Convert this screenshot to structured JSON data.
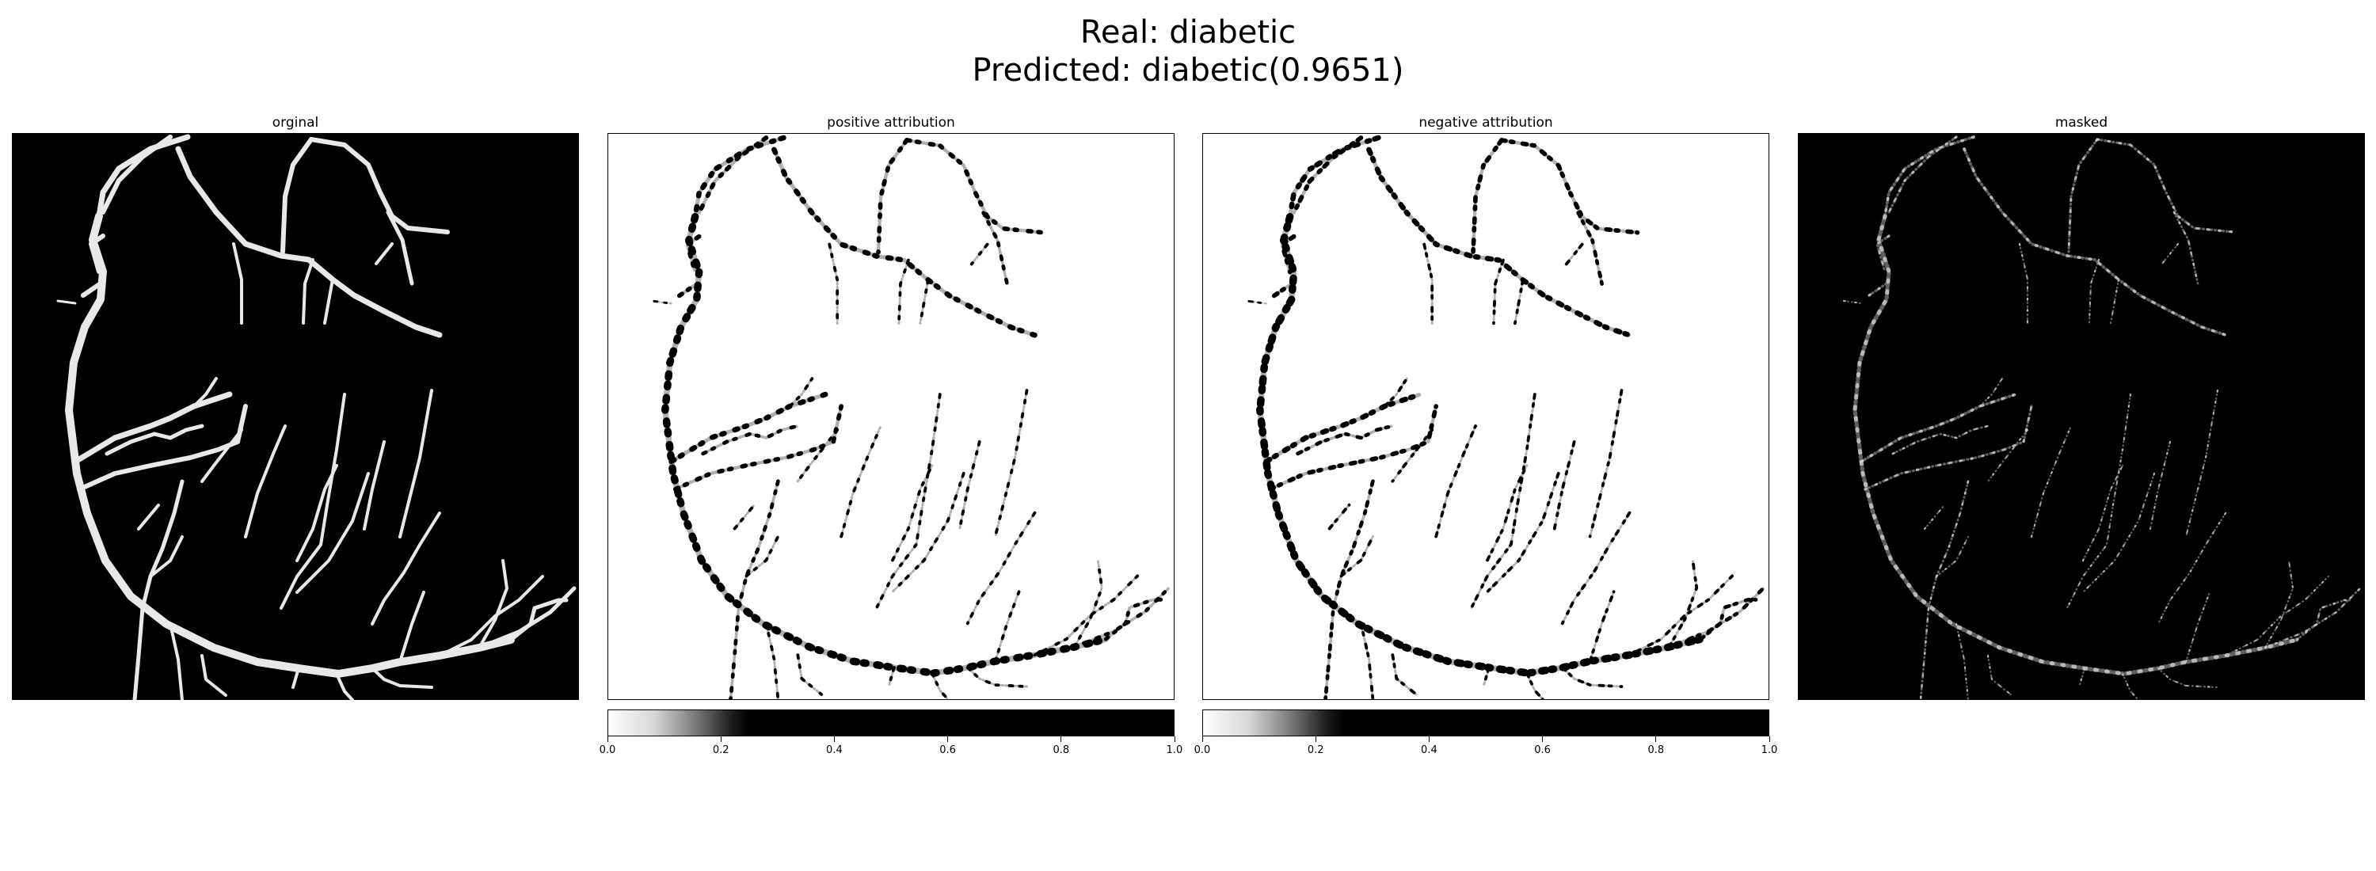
{
  "figure": {
    "title_line1": "Real: diabetic",
    "title_line2": "Predicted: diabetic(0.9651)"
  },
  "panels": [
    {
      "title": "orginal",
      "background": "#000000"
    },
    {
      "title": "positive attribution",
      "background": "#ffffff"
    },
    {
      "title": "negative attribution",
      "background": "#ffffff"
    },
    {
      "title": "masked",
      "background": "#000000"
    }
  ],
  "colorbar": {
    "ticks": [
      "0.0",
      "0.2",
      "0.4",
      "0.6",
      "0.8",
      "1.0"
    ],
    "range": [
      0.0,
      1.0
    ],
    "colormap": "white-to-black (saturates near 0.25)"
  }
}
